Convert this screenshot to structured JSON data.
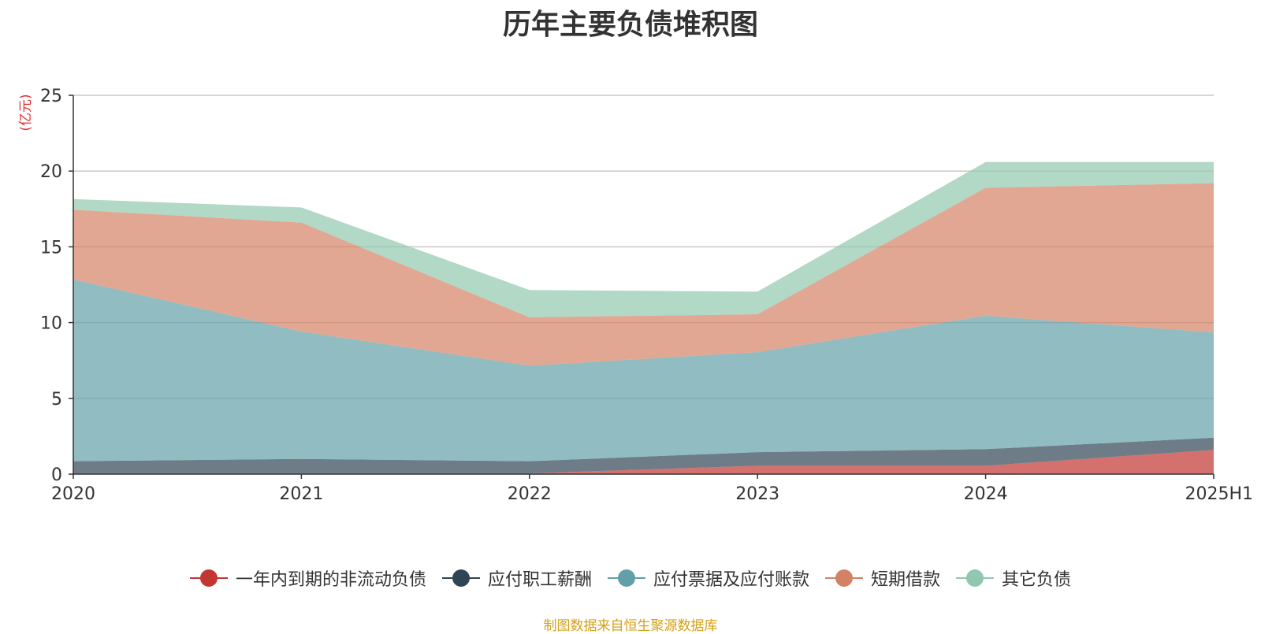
{
  "chart_data": {
    "type": "area",
    "stacked": true,
    "title": "历年主要负债堆积图",
    "y_unit": "(亿元)",
    "categories": [
      "2020",
      "2021",
      "2022",
      "2023",
      "2024",
      "2025H1"
    ],
    "ylim": [
      0,
      25
    ],
    "yticks": [
      0,
      5,
      10,
      15,
      20,
      25
    ],
    "grid": true,
    "legend_position": "bottom",
    "series": [
      {
        "name": "一年内到期的非流动负债",
        "color": "#c23531",
        "values": [
          0.05,
          0.05,
          0.05,
          0.55,
          0.55,
          1.6
        ]
      },
      {
        "name": "应付职工薪酬",
        "color": "#2f4554",
        "values": [
          0.8,
          0.95,
          0.8,
          0.9,
          1.1,
          0.8
        ]
      },
      {
        "name": "应付票据及应付账款",
        "color": "#61a0a8",
        "values": [
          12.0,
          8.4,
          6.3,
          6.6,
          8.8,
          6.95
        ]
      },
      {
        "name": "短期借款",
        "color": "#d48265",
        "values": [
          4.6,
          7.2,
          3.2,
          2.5,
          8.45,
          9.85
        ]
      },
      {
        "name": "其它负债",
        "color": "#91c7ae",
        "values": [
          0.7,
          1.0,
          1.8,
          1.5,
          1.7,
          1.4
        ]
      }
    ]
  },
  "footer": {
    "source": "制图数据来自恒生聚源数据库",
    "source_color": "#d4a017"
  }
}
